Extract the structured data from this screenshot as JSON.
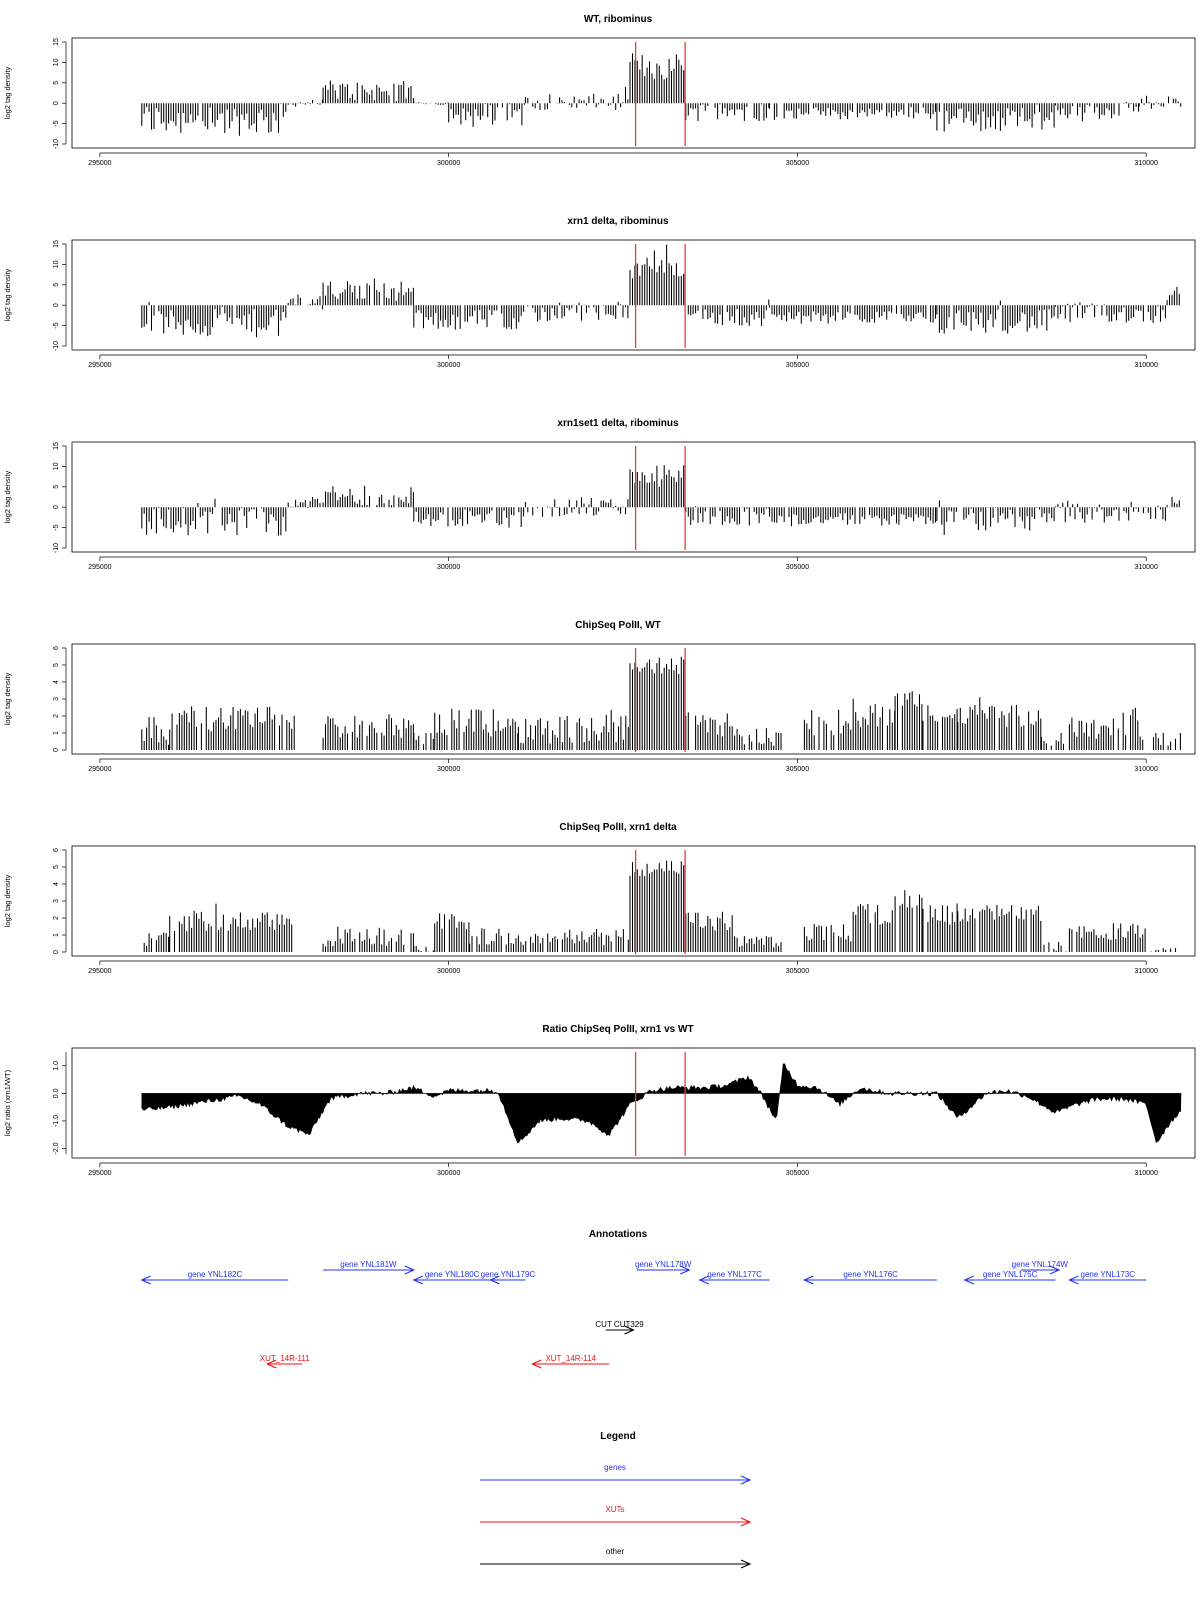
{
  "colors": {
    "genes": "#2233ee",
    "xuts": "#ee1111",
    "other": "#000000",
    "boundary": "#e83a3a",
    "data": "#000000"
  },
  "boundaries": [
    302680,
    303390
  ],
  "chart_data": [
    {
      "type": "bar",
      "title": "WT, ribominus",
      "ylabel": "log2 tag density",
      "xlim": [
        294600,
        310700
      ],
      "ylim": [
        -10,
        15
      ],
      "yticks": [
        "-10",
        "-5",
        "0",
        "5",
        "10",
        "15"
      ],
      "xticks": [
        "295000",
        "300000",
        "305000",
        "310000"
      ],
      "grid": false,
      "bin_width": 35,
      "segments": [
        [
          295600,
          297700,
          -4,
          4.0,
          6
        ],
        [
          297700,
          298200,
          0,
          0.9,
          8
        ],
        [
          298200,
          299500,
          3,
          2.5,
          7
        ],
        [
          299500,
          300000,
          0,
          0.5,
          10
        ],
        [
          300000,
          301100,
          -3,
          3.0,
          7
        ],
        [
          301100,
          302600,
          0.3,
          2.0,
          8
        ],
        [
          302600,
          303400,
          9,
          3.5,
          5
        ],
        [
          303400,
          304600,
          -2,
          2.5,
          7
        ],
        [
          304600,
          307000,
          -2.5,
          1.5,
          6
        ],
        [
          307000,
          308700,
          -4,
          3.0,
          5
        ],
        [
          308700,
          309900,
          -2,
          2.0,
          6
        ],
        [
          309900,
          310500,
          0.6,
          1.5,
          9
        ]
      ]
    },
    {
      "type": "bar",
      "title": "xrn1 delta, ribominus",
      "ylabel": "log2 tag density",
      "xlim": [
        294600,
        310700
      ],
      "ylim": [
        -10,
        15
      ],
      "yticks": [
        "-10",
        "-5",
        "0",
        "5",
        "10",
        "15"
      ],
      "xticks": [
        "295000",
        "300000",
        "305000",
        "310000"
      ],
      "grid": false,
      "bin_width": 35,
      "segments": [
        [
          295600,
          297700,
          -4.5,
          3.5,
          5
        ],
        [
          297700,
          298200,
          1,
          2.0,
          6
        ],
        [
          298200,
          299500,
          3.5,
          2.5,
          7
        ],
        [
          299500,
          301100,
          -3.5,
          2.5,
          6
        ],
        [
          301100,
          302600,
          -2,
          3.0,
          6
        ],
        [
          302600,
          303400,
          10,
          3.5,
          5
        ],
        [
          303400,
          304600,
          -3,
          2.5,
          6
        ],
        [
          304600,
          307000,
          -3,
          1.5,
          5
        ],
        [
          307000,
          308700,
          -4,
          3.0,
          5
        ],
        [
          308700,
          310300,
          -2,
          2.5,
          5
        ],
        [
          310300,
          310500,
          3,
          2.0,
          7
        ]
      ]
    },
    {
      "type": "bar",
      "title": "xrn1set1 delta, ribominus",
      "ylabel": "log2 tag density",
      "xlim": [
        294600,
        310700
      ],
      "ylim": [
        -10,
        15
      ],
      "yticks": [
        "-10",
        "-5",
        "0",
        "5",
        "10",
        "15"
      ],
      "xticks": [
        "295000",
        "300000",
        "305000",
        "310000"
      ],
      "grid": false,
      "bin_width": 35,
      "segments": [
        [
          295600,
          297700,
          -3.5,
          3.5,
          5
        ],
        [
          297700,
          298200,
          1,
          1.5,
          6
        ],
        [
          298200,
          299500,
          3,
          2.5,
          7
        ],
        [
          299500,
          301100,
          -3,
          2.5,
          6
        ],
        [
          301100,
          302600,
          0,
          2.5,
          6
        ],
        [
          302600,
          303400,
          8,
          3.0,
          5
        ],
        [
          303400,
          304600,
          -2,
          2.5,
          6
        ],
        [
          304600,
          307000,
          -3,
          1.5,
          5
        ],
        [
          307000,
          308700,
          -3,
          3.0,
          5
        ],
        [
          308700,
          310300,
          -1.5,
          2.5,
          5
        ],
        [
          310300,
          310500,
          1.5,
          2.0,
          7
        ]
      ]
    },
    {
      "type": "bar",
      "title": "ChipSeq PolII, WT",
      "ylabel": "log2 tag density",
      "xlim": [
        294600,
        310700
      ],
      "ylim": [
        0,
        6
      ],
      "yticks": [
        "0",
        "1",
        "2",
        "3",
        "4",
        "5",
        "6"
      ],
      "xticks": [
        "295000",
        "300000",
        "305000",
        "310000"
      ],
      "grid": false,
      "bin_width": 35,
      "segments": [
        [
          295600,
          296000,
          1.2,
          0.9,
          8
        ],
        [
          296000,
          297800,
          1.9,
          0.7,
          10
        ],
        [
          297800,
          298200,
          0,
          0,
          0
        ],
        [
          298200,
          299500,
          1.4,
          0.7,
          8
        ],
        [
          299500,
          299800,
          0.4,
          0.5,
          20
        ],
        [
          299800,
          301000,
          1.6,
          0.8,
          8
        ],
        [
          301000,
          302600,
          1.3,
          0.9,
          8
        ],
        [
          302600,
          303400,
          5.0,
          0.6,
          3
        ],
        [
          303400,
          304100,
          1.6,
          0.8,
          8
        ],
        [
          304100,
          304800,
          0.8,
          0.6,
          12
        ],
        [
          304800,
          305100,
          0,
          0,
          0
        ],
        [
          305100,
          305800,
          1.2,
          0.8,
          10
        ],
        [
          305800,
          306400,
          2.0,
          0.7,
          8
        ],
        [
          306400,
          306800,
          3.0,
          0.5,
          5
        ],
        [
          306800,
          307300,
          2.0,
          0.7,
          8
        ],
        [
          307300,
          308500,
          2.0,
          0.7,
          8
        ],
        [
          308500,
          308900,
          0.4,
          0.4,
          25
        ],
        [
          308900,
          310000,
          1.4,
          0.8,
          8
        ],
        [
          310000,
          310500,
          0.5,
          0.5,
          40
        ]
      ]
    },
    {
      "type": "bar",
      "title": "ChipSeq PolII, xrn1 delta",
      "ylabel": "log2 tag density",
      "xlim": [
        294600,
        310700
      ],
      "ylim": [
        0,
        6
      ],
      "yticks": [
        "0",
        "1",
        "2",
        "3",
        "4",
        "5",
        "6"
      ],
      "xticks": [
        "295000",
        "300000",
        "305000",
        "310000"
      ],
      "grid": false,
      "bin_width": 35,
      "segments": [
        [
          295600,
          296000,
          0.9,
          0.6,
          8
        ],
        [
          296000,
          297800,
          1.8,
          0.6,
          10
        ],
        [
          297800,
          298200,
          0,
          0,
          0
        ],
        [
          298200,
          299500,
          0.9,
          0.6,
          8
        ],
        [
          299500,
          299800,
          0.2,
          0.3,
          30
        ],
        [
          299800,
          300300,
          1.8,
          0.5,
          6
        ],
        [
          300300,
          302600,
          0.9,
          0.5,
          8
        ],
        [
          302600,
          303400,
          4.9,
          0.5,
          3
        ],
        [
          303400,
          304100,
          1.8,
          0.6,
          8
        ],
        [
          304100,
          304800,
          0.6,
          0.4,
          12
        ],
        [
          304800,
          305100,
          0,
          0,
          0
        ],
        [
          305100,
          305800,
          1.2,
          0.6,
          10
        ],
        [
          305800,
          306400,
          2.2,
          0.6,
          8
        ],
        [
          306400,
          306800,
          3.0,
          0.4,
          5
        ],
        [
          306800,
          307300,
          2.2,
          0.6,
          8
        ],
        [
          307300,
          308500,
          2.3,
          0.5,
          8
        ],
        [
          308500,
          308900,
          0.3,
          0.3,
          30
        ],
        [
          308900,
          310000,
          1.2,
          0.5,
          8
        ],
        [
          310000,
          310500,
          0.2,
          0.3,
          40
        ]
      ]
    },
    {
      "type": "area",
      "title": "Ratio ChipSeq PolII, xrn1 vs WT",
      "ylabel": "log2 ratio (xrn1/WT)",
      "xlim": [
        294600,
        310700
      ],
      "ylim": [
        -2.2,
        1.5
      ],
      "yticks": [
        "-2.0",
        "-1.0",
        "0.0",
        "1.0"
      ],
      "xticks": [
        "295000",
        "300000",
        "305000",
        "310000"
      ],
      "grid": false,
      "x": [
        295600,
        296000,
        296500,
        297000,
        297300,
        297700,
        298000,
        298300,
        298700,
        299100,
        299500,
        299800,
        300000,
        300300,
        300700,
        301000,
        301300,
        301600,
        302000,
        302300,
        302600,
        302900,
        303200,
        303400,
        303700,
        304000,
        304300,
        304500,
        304700,
        304800,
        305000,
        305300,
        305600,
        305900,
        306300,
        306700,
        307000,
        307300,
        307700,
        308000,
        308300,
        308700,
        309000,
        309300,
        309700,
        310000,
        310150,
        310300,
        310500
      ],
      "y": [
        -0.6,
        -0.5,
        -0.3,
        -0.1,
        -0.4,
        -1.2,
        -1.5,
        -0.2,
        0.0,
        0.0,
        0.2,
        -0.1,
        0.1,
        0.1,
        0.1,
        -1.8,
        -1.0,
        -0.9,
        -1.0,
        -1.5,
        -0.4,
        0.1,
        0.2,
        0.2,
        0.2,
        0.3,
        0.6,
        -0.1,
        -1.0,
        1.1,
        0.3,
        0.2,
        -0.4,
        0.2,
        0.0,
        0.0,
        0.0,
        -0.9,
        0.0,
        0.1,
        -0.1,
        -0.7,
        -0.4,
        -0.2,
        -0.2,
        -0.4,
        -1.8,
        -1.2,
        -0.6
      ]
    }
  ],
  "annotations": {
    "title": "Annotations",
    "features": [
      {
        "label": "gene YNL182C",
        "kind": "genes",
        "start": 297700,
        "end": 295600,
        "row": 1
      },
      {
        "label": "gene YNL181W",
        "kind": "genes",
        "start": 298200,
        "end": 299500,
        "row": 0
      },
      {
        "label": "gene YNL180C",
        "kind": "genes",
        "start": 300600,
        "end": 299500,
        "row": 1
      },
      {
        "label": "gene YNL179C",
        "kind": "genes",
        "start": 301100,
        "end": 300600,
        "row": 1
      },
      {
        "label": "gene YNL178W",
        "kind": "genes",
        "start": 302700,
        "end": 303450,
        "row": 0
      },
      {
        "label": "gene YNL177C",
        "kind": "genes",
        "start": 304600,
        "end": 303600,
        "row": 1
      },
      {
        "label": "gene YNL176C",
        "kind": "genes",
        "start": 307000,
        "end": 305100,
        "row": 1
      },
      {
        "label": "gene YNL174W",
        "kind": "genes",
        "start": 308200,
        "end": 308750,
        "row": 0
      },
      {
        "label": "gene YNL175C",
        "kind": "genes",
        "start": 308700,
        "end": 307400,
        "row": 1
      },
      {
        "label": "gene YNL173C",
        "kind": "genes",
        "start": 310000,
        "end": 308900,
        "row": 1
      },
      {
        "label": "CUT CUT329",
        "kind": "other",
        "start": 302250,
        "end": 302650,
        "row": 2
      },
      {
        "label": "XUT_14R-111",
        "kind": "xuts",
        "start": 297900,
        "end": 297400,
        "row": 3
      },
      {
        "label": "XUT_14R-114",
        "kind": "xuts",
        "start": 302300,
        "end": 301200,
        "row": 3
      }
    ]
  },
  "legend": {
    "title": "Legend",
    "entries": [
      {
        "label": "genes",
        "kind": "genes"
      },
      {
        "label": "XUTs",
        "kind": "xuts"
      },
      {
        "label": "other",
        "kind": "other"
      }
    ]
  }
}
